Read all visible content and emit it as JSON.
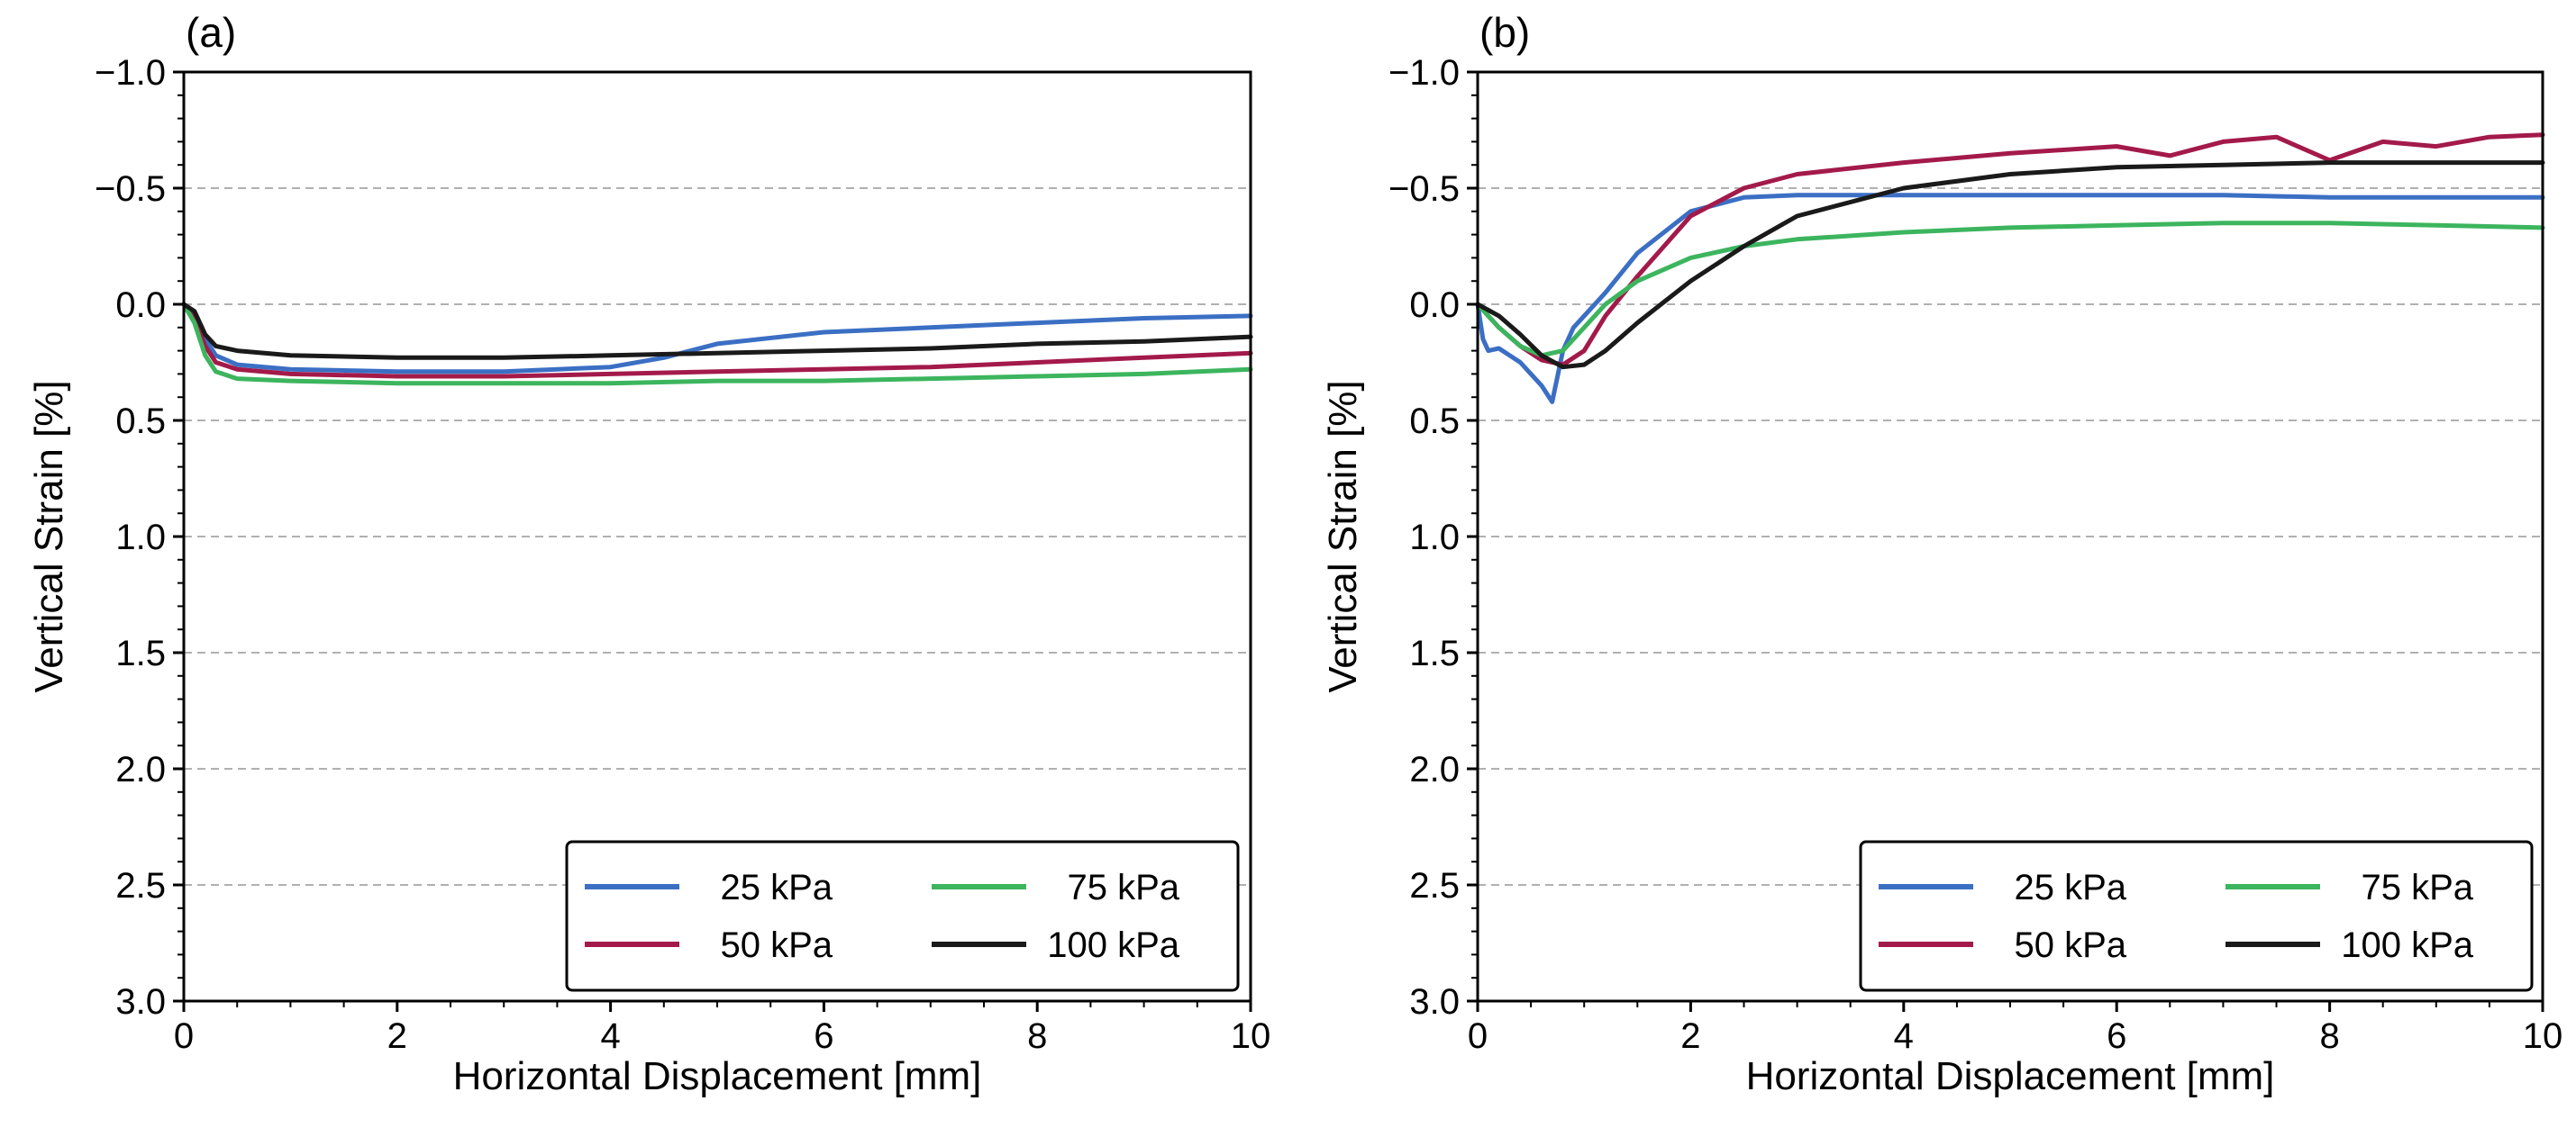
{
  "chart_data": [
    {
      "type": "line",
      "panel_label": "(a)",
      "xlabel": "Horizontal Displacement [mm]",
      "ylabel": "Vertical Strain [%]",
      "xlim": [
        0,
        10
      ],
      "ylim": [
        -1.0,
        3.0
      ],
      "y_inverted": true,
      "xticks": [
        "0",
        "2",
        "4",
        "6",
        "8",
        "10"
      ],
      "yticks": [
        "−1.0",
        "−0.5",
        "0.0",
        "0.5",
        "1.0",
        "1.5",
        "2.0",
        "2.5",
        "3.0"
      ],
      "grid": "horizontal dashed",
      "legend": {
        "position": "lower-right",
        "columns": 2
      },
      "series": [
        {
          "name": "25 kPa",
          "color": "#3b6fc4",
          "x": [
            0,
            0.1,
            0.2,
            0.3,
            0.5,
            1,
            2,
            3,
            4,
            4.5,
            5,
            6,
            7,
            8,
            9,
            10
          ],
          "y": [
            0,
            0.05,
            0.15,
            0.22,
            0.26,
            0.28,
            0.29,
            0.29,
            0.27,
            0.23,
            0.17,
            0.12,
            0.1,
            0.08,
            0.06,
            0.05
          ]
        },
        {
          "name": "50 kPa",
          "color": "#a31a4a",
          "x": [
            0,
            0.1,
            0.2,
            0.3,
            0.5,
            1,
            2,
            3,
            4,
            5,
            6,
            7,
            8,
            9,
            10
          ],
          "y": [
            0,
            0.06,
            0.18,
            0.25,
            0.28,
            0.3,
            0.31,
            0.31,
            0.3,
            0.29,
            0.28,
            0.27,
            0.25,
            0.23,
            0.21
          ]
        },
        {
          "name": "75 kPa",
          "color": "#3cb55e",
          "x": [
            0,
            0.1,
            0.2,
            0.3,
            0.5,
            1,
            2,
            3,
            4,
            5,
            6,
            7,
            8,
            9,
            10
          ],
          "y": [
            0,
            0.08,
            0.22,
            0.29,
            0.32,
            0.33,
            0.34,
            0.34,
            0.34,
            0.33,
            0.33,
            0.32,
            0.31,
            0.3,
            0.28
          ]
        },
        {
          "name": "100 kPa",
          "color": "#1a1a1a",
          "x": [
            0,
            0.1,
            0.2,
            0.3,
            0.5,
            1,
            2,
            3,
            4,
            5,
            6,
            7,
            8,
            9,
            10
          ],
          "y": [
            0,
            0.03,
            0.13,
            0.18,
            0.2,
            0.22,
            0.23,
            0.23,
            0.22,
            0.21,
            0.2,
            0.19,
            0.17,
            0.16,
            0.14
          ]
        }
      ]
    },
    {
      "type": "line",
      "panel_label": "(b)",
      "xlabel": "Horizontal Displacement [mm]",
      "ylabel": "Vertical Strain [%]",
      "xlim": [
        0,
        10
      ],
      "ylim": [
        -1.0,
        3.0
      ],
      "y_inverted": true,
      "xticks": [
        "0",
        "2",
        "4",
        "6",
        "8",
        "10"
      ],
      "yticks": [
        "−1.0",
        "−0.5",
        "0.0",
        "0.5",
        "1.0",
        "1.5",
        "2.0",
        "2.5",
        "3.0"
      ],
      "grid": "horizontal dashed",
      "legend": {
        "position": "lower-right",
        "columns": 2
      },
      "series": [
        {
          "name": "25 kPa",
          "color": "#3b6fc4",
          "x": [
            0,
            0.05,
            0.1,
            0.2,
            0.3,
            0.4,
            0.5,
            0.6,
            0.7,
            0.8,
            0.9,
            1.0,
            1.2,
            1.5,
            2.0,
            2.5,
            3,
            4,
            5,
            6,
            7,
            8,
            9,
            10
          ],
          "y": [
            0,
            0.15,
            0.2,
            0.19,
            0.22,
            0.25,
            0.3,
            0.35,
            0.42,
            0.2,
            0.1,
            0.05,
            -0.05,
            -0.22,
            -0.4,
            -0.46,
            -0.47,
            -0.47,
            -0.47,
            -0.47,
            -0.47,
            -0.46,
            -0.46,
            -0.46
          ]
        },
        {
          "name": "50 kPa",
          "color": "#a31a4a",
          "x": [
            0,
            0.2,
            0.4,
            0.6,
            0.8,
            1.0,
            1.2,
            1.5,
            2.0,
            2.5,
            3,
            4,
            5,
            6,
            6.5,
            7,
            7.5,
            8,
            8.5,
            9,
            9.5,
            10
          ],
          "y": [
            0,
            0.1,
            0.18,
            0.24,
            0.26,
            0.2,
            0.05,
            -0.12,
            -0.38,
            -0.5,
            -0.56,
            -0.61,
            -0.65,
            -0.68,
            -0.64,
            -0.7,
            -0.72,
            -0.62,
            -0.7,
            -0.68,
            -0.72,
            -0.73
          ]
        },
        {
          "name": "75 kPa",
          "color": "#3cb55e",
          "x": [
            0,
            0.2,
            0.4,
            0.6,
            0.8,
            1.0,
            1.2,
            1.5,
            2.0,
            2.5,
            3,
            4,
            5,
            6,
            7,
            8,
            9,
            10
          ],
          "y": [
            0,
            0.1,
            0.18,
            0.22,
            0.2,
            0.1,
            0.0,
            -0.1,
            -0.2,
            -0.25,
            -0.28,
            -0.31,
            -0.33,
            -0.34,
            -0.35,
            -0.35,
            -0.34,
            -0.33
          ]
        },
        {
          "name": "100 kPa",
          "color": "#1a1a1a",
          "x": [
            0,
            0.2,
            0.4,
            0.6,
            0.8,
            1.0,
            1.2,
            1.5,
            2.0,
            2.5,
            3,
            4,
            5,
            6,
            7,
            8,
            9,
            10
          ],
          "y": [
            0,
            0.05,
            0.13,
            0.22,
            0.27,
            0.26,
            0.2,
            0.08,
            -0.1,
            -0.25,
            -0.38,
            -0.5,
            -0.56,
            -0.59,
            -0.6,
            -0.61,
            -0.61,
            -0.61
          ]
        }
      ]
    }
  ]
}
